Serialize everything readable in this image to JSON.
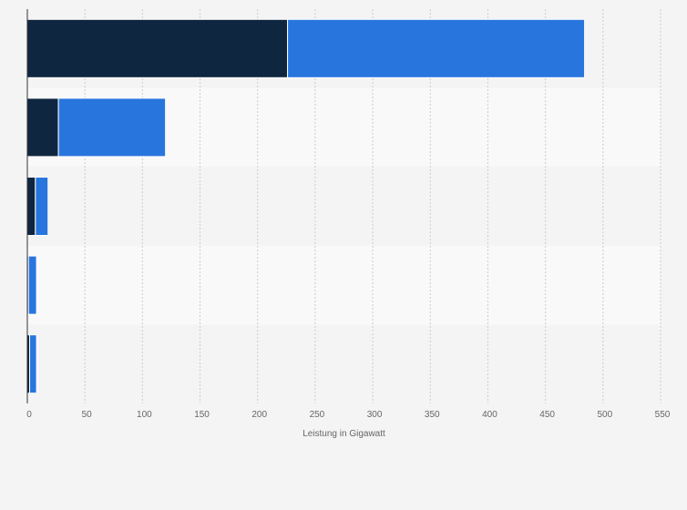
{
  "chart_data": {
    "type": "bar",
    "orientation": "horizontal",
    "stacked": true,
    "categories": [
      "",
      "",
      "",
      "",
      ""
    ],
    "series": [
      {
        "values": [
          226,
          27,
          7,
          1,
          2
        ],
        "color": "#0f2640"
      },
      {
        "values": [
          258,
          93,
          11,
          7,
          6
        ],
        "color": "#2876dd"
      }
    ],
    "xlabel": "Leistung in Gigawatt",
    "xlim": [
      0,
      550
    ],
    "xticks": [
      0,
      50,
      100,
      150,
      200,
      250,
      300,
      350,
      400,
      450,
      500,
      550
    ],
    "grid": true,
    "grid_style": "dashed vertical",
    "row_band_colors": [
      "#f4f4f4",
      "#f9f9f9"
    ]
  }
}
